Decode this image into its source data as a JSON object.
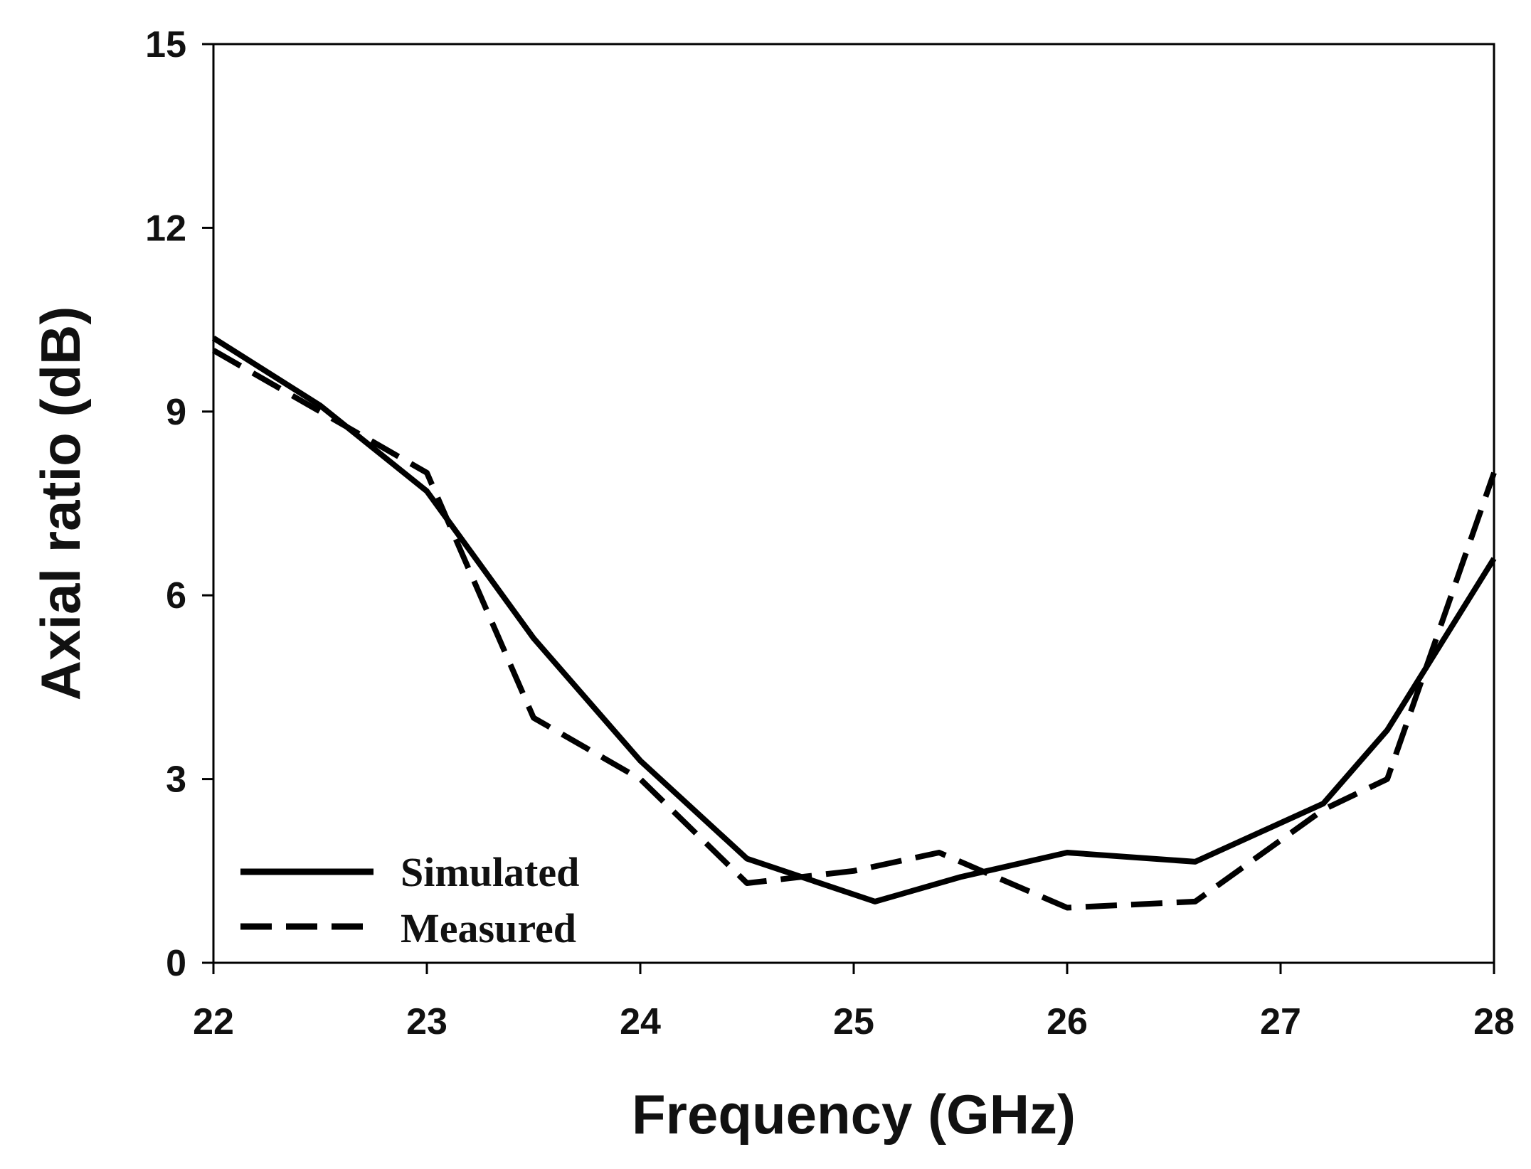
{
  "chart_data": {
    "type": "line",
    "title": "",
    "xlabel": "Frequency (GHz)",
    "ylabel": "Axial ratio (dB)",
    "xlim": [
      22,
      28
    ],
    "ylim": [
      0,
      15
    ],
    "x_ticks": [
      22,
      23,
      24,
      25,
      26,
      27,
      28
    ],
    "y_ticks": [
      0,
      3,
      6,
      9,
      12,
      15
    ],
    "x_tick_labels": [
      "22",
      "23",
      "24",
      "25",
      "26",
      "27",
      "28"
    ],
    "y_tick_labels": [
      "0",
      "3",
      "6",
      "9",
      "12",
      "15"
    ],
    "grid": false,
    "legend_position": "bottom-left",
    "series": [
      {
        "name": "Simulated",
        "style": "solid",
        "color": "#000000",
        "x": [
          22.0,
          22.5,
          23.0,
          23.5,
          24.0,
          24.5,
          25.1,
          25.5,
          26.0,
          26.6,
          27.2,
          27.5,
          28.0
        ],
        "y": [
          10.2,
          9.1,
          7.7,
          5.3,
          3.3,
          1.7,
          1.0,
          1.4,
          1.8,
          1.65,
          2.6,
          3.8,
          6.6
        ]
      },
      {
        "name": "Measured",
        "style": "dashed",
        "color": "#000000",
        "x": [
          22.0,
          22.5,
          23.0,
          23.5,
          24.0,
          24.5,
          25.0,
          25.4,
          26.0,
          26.6,
          27.2,
          27.5,
          28.0
        ],
        "y": [
          10.0,
          9.0,
          8.0,
          4.0,
          3.0,
          1.3,
          1.5,
          1.8,
          0.9,
          1.0,
          2.5,
          3.0,
          8.0
        ]
      }
    ]
  }
}
